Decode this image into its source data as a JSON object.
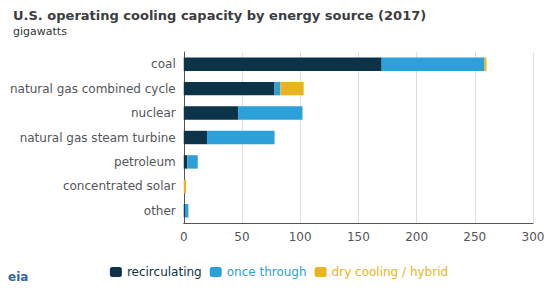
{
  "chart_data": {
    "type": "bar",
    "orientation": "horizontal",
    "stacked": true,
    "title": "U.S. operating cooling capacity by energy source (2017)",
    "subtitle": "gigawatts",
    "annotations": [
      "eia"
    ],
    "categories": [
      "other",
      "concentrated solar",
      "petroleum",
      "natural gas steam turbine",
      "nuclear",
      "natural gas combined cycle",
      "coal"
    ],
    "series": [
      {
        "name": "recirculating",
        "color": "#0d3349",
        "values": [
          1,
          0,
          3,
          20,
          47,
          78,
          170
        ]
      },
      {
        "name": "once through",
        "color": "#2ca0d8",
        "values": [
          3,
          0,
          9,
          58,
          55,
          5,
          88
        ]
      },
      {
        "name": "dry cooling / hybrid",
        "color": "#e8b422",
        "values": [
          0,
          2,
          0,
          0,
          0,
          20,
          2
        ]
      }
    ],
    "xlim": [
      0,
      300
    ],
    "xticks": [
      0,
      50,
      100,
      150,
      200,
      250,
      300
    ],
    "grid": true,
    "legend": "bottom"
  }
}
